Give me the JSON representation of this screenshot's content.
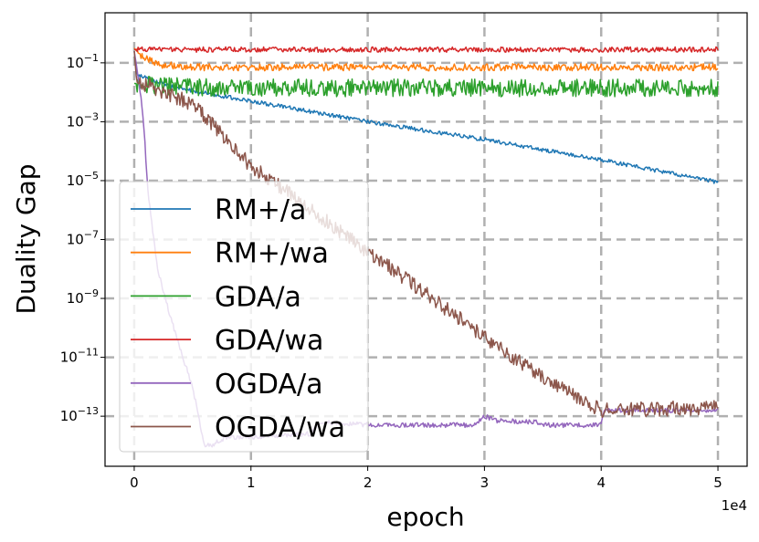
{
  "chart_data": {
    "type": "line",
    "title": "",
    "xlabel": "epoch",
    "ylabel": "Duality Gap",
    "x_offset_label": "1e4",
    "xlim": [
      -0.25,
      5.25
    ],
    "ylim_log10": [
      -14.7,
      0.7
    ],
    "yscale": "log",
    "grid": true,
    "legend_position": "lower-left",
    "x_ticks": [
      {
        "value": 0,
        "label": "0"
      },
      {
        "value": 1,
        "label": "1"
      },
      {
        "value": 2,
        "label": "2"
      },
      {
        "value": 3,
        "label": "3"
      },
      {
        "value": 4,
        "label": "4"
      },
      {
        "value": 5,
        "label": "5"
      }
    ],
    "y_ticks": [
      {
        "exp": -1,
        "base": "10",
        "sup": "−1"
      },
      {
        "exp": -3,
        "base": "10",
        "sup": "−3"
      },
      {
        "exp": -5,
        "base": "10",
        "sup": "−5"
      },
      {
        "exp": -7,
        "base": "10",
        "sup": "−7"
      },
      {
        "exp": -9,
        "base": "10",
        "sup": "−9"
      },
      {
        "exp": -11,
        "base": "10",
        "sup": "−11"
      },
      {
        "exp": -13,
        "base": "10",
        "sup": "−13"
      }
    ],
    "series": [
      {
        "name": "RM+/a",
        "color": "#1f77b4",
        "noise": 0.07,
        "x": [
          0,
          0.02,
          0.3,
          1.0,
          2.0,
          3.0,
          4.0,
          5.0
        ],
        "log10_y": [
          -0.6,
          -1.4,
          -1.8,
          -2.3,
          -3.0,
          -3.6,
          -4.3,
          -5.05
        ]
      },
      {
        "name": "RM+/wa",
        "color": "#ff7f0e",
        "noise": 0.12,
        "x": [
          0,
          0.05,
          0.2,
          0.5,
          1.0,
          5.0
        ],
        "log10_y": [
          -0.5,
          -0.75,
          -1.05,
          -1.15,
          -1.15,
          -1.15
        ]
      },
      {
        "name": "GDA/a",
        "color": "#2ca02c",
        "noise": 0.3,
        "x": [
          0,
          0.3,
          0.8,
          1.5,
          5.0
        ],
        "log10_y": [
          -1.7,
          -1.8,
          -1.85,
          -1.85,
          -1.85
        ]
      },
      {
        "name": "GDA/wa",
        "color": "#d62728",
        "noise": 0.09,
        "x": [
          0,
          5.0
        ],
        "log10_y": [
          -0.55,
          -0.55
        ]
      },
      {
        "name": "OGDA/a",
        "color": "#9467bd",
        "noise": 0.08,
        "x": [
          0,
          0.04,
          0.08,
          0.12,
          0.2,
          0.3,
          0.4,
          0.5,
          0.6,
          0.65,
          0.8,
          1.0,
          1.5,
          1.6,
          2.0,
          2.1,
          2.9,
          3.0,
          3.1,
          3.45,
          3.5,
          4.0,
          4.02,
          5.0
        ],
        "log10_y": [
          -0.6,
          -1.6,
          -3.0,
          -5.5,
          -8.0,
          -9.5,
          -10.8,
          -12.0,
          -14.0,
          -14.0,
          -13.7,
          -13.7,
          -13.6,
          -13.2,
          -13.3,
          -13.3,
          -13.3,
          -13.0,
          -13.15,
          -13.2,
          -13.3,
          -13.3,
          -12.8,
          -12.8
        ]
      },
      {
        "name": "OGDA/wa",
        "color": "#8c564b",
        "noise": 0.25,
        "x": [
          0,
          0.02,
          0.5,
          1.0,
          2.0,
          3.0,
          3.5,
          4.0,
          5.0
        ],
        "log10_y": [
          -0.6,
          -1.6,
          -2.4,
          -4.5,
          -7.4,
          -10.3,
          -11.7,
          -12.8,
          -12.7
        ]
      }
    ]
  }
}
